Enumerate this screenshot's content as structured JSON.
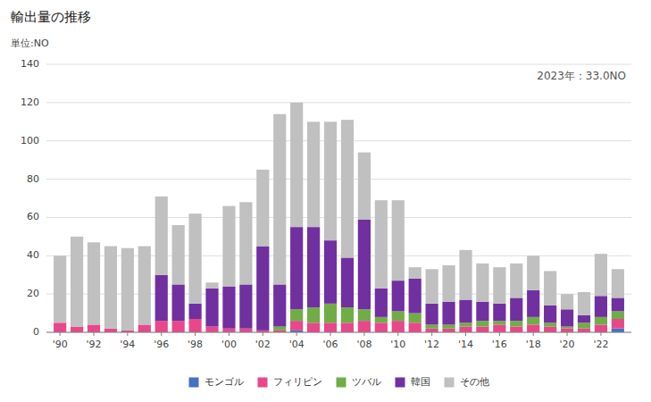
{
  "chart_data": {
    "type": "bar",
    "stacked": true,
    "title": "輸出量の推移",
    "ylabel": "単位:NO",
    "annotations": [
      "2023年：33.0NO"
    ],
    "x": [
      1990,
      1991,
      1992,
      1993,
      1994,
      1995,
      1996,
      1997,
      1998,
      1999,
      2000,
      2001,
      2002,
      2003,
      2004,
      2005,
      2006,
      2007,
      2008,
      2009,
      2010,
      2011,
      2012,
      2013,
      2014,
      2015,
      2016,
      2017,
      2018,
      2019,
      2020,
      2021,
      2022,
      2023
    ],
    "series": [
      {
        "name": "モンゴル",
        "color": "#4472c4",
        "values": [
          0,
          0,
          0,
          0,
          0,
          0,
          0,
          0,
          0,
          0,
          0,
          0,
          0,
          0,
          1,
          0,
          0,
          0,
          0,
          0,
          0,
          0,
          0,
          0,
          0,
          0,
          0,
          0,
          0,
          0,
          0,
          0,
          0,
          2
        ]
      },
      {
        "name": "フィリピン",
        "color": "#e8488a",
        "values": [
          5,
          3,
          4,
          2,
          1,
          4,
          6,
          6,
          7,
          3,
          2,
          2,
          1,
          1,
          5,
          5,
          5,
          5,
          6,
          5,
          6,
          5,
          2,
          2,
          3,
          3,
          4,
          3,
          4,
          3,
          2,
          2,
          4,
          5
        ]
      },
      {
        "name": "ツバル",
        "color": "#70ad47",
        "values": [
          0,
          0,
          0,
          0,
          0,
          0,
          0,
          0,
          0,
          0,
          0,
          0,
          0,
          2,
          6,
          8,
          10,
          8,
          6,
          3,
          5,
          5,
          2,
          2,
          2,
          3,
          2,
          3,
          4,
          2,
          1,
          3,
          4,
          4
        ]
      },
      {
        "name": "韓国",
        "color": "#7030a0",
        "values": [
          0,
          0,
          0,
          0,
          0,
          0,
          24,
          19,
          8,
          20,
          22,
          23,
          44,
          22,
          43,
          42,
          33,
          26,
          47,
          15,
          16,
          18,
          11,
          12,
          12,
          10,
          9,
          12,
          14,
          9,
          9,
          4,
          11,
          7
        ]
      },
      {
        "name": "その他",
        "color": "#c0c0c0",
        "values": [
          35,
          47,
          43,
          43,
          43,
          41,
          41,
          31,
          47,
          3,
          42,
          43,
          40,
          89,
          65,
          55,
          62,
          72,
          35,
          46,
          42,
          6,
          18,
          19,
          26,
          20,
          19,
          18,
          18,
          18,
          8,
          12,
          22,
          15
        ]
      }
    ],
    "xlim": [
      1989.2,
      2023.8
    ],
    "xticks": [
      {
        "value": 1990,
        "label": "'90"
      },
      {
        "value": 1992,
        "label": "'92"
      },
      {
        "value": 1994,
        "label": "'94"
      },
      {
        "value": 1996,
        "label": "'96"
      },
      {
        "value": 1998,
        "label": "'98"
      },
      {
        "value": 2000,
        "label": "'00"
      },
      {
        "value": 2002,
        "label": "'02"
      },
      {
        "value": 2004,
        "label": "'04"
      },
      {
        "value": 2006,
        "label": "'06"
      },
      {
        "value": 2008,
        "label": "'08"
      },
      {
        "value": 2010,
        "label": "'10"
      },
      {
        "value": 2012,
        "label": "'12"
      },
      {
        "value": 2014,
        "label": "'14"
      },
      {
        "value": 2016,
        "label": "'16"
      },
      {
        "value": 2018,
        "label": "'18"
      },
      {
        "value": 2020,
        "label": "'20"
      },
      {
        "value": 2022,
        "label": "'22"
      }
    ],
    "ylim": [
      0,
      140
    ],
    "yticks": [
      0,
      20,
      40,
      60,
      80,
      100,
      120,
      140
    ],
    "grid": true,
    "legend": "bottom"
  }
}
